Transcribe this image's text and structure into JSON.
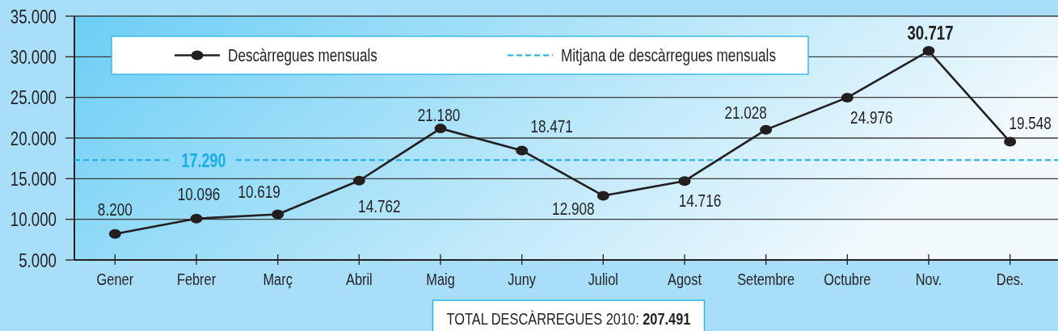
{
  "chart_data": {
    "type": "line",
    "categories": [
      "Gener",
      "Febrer",
      "Març",
      "Abril",
      "Maig",
      "Juny",
      "Juliol",
      "Agost",
      "Setembre",
      "Octubre",
      "Nov.",
      "Des."
    ],
    "series": [
      {
        "name": "Descàrregues mensuals",
        "color": "#231f20",
        "values": [
          8200,
          10096,
          10619,
          14762,
          21180,
          18471,
          12908,
          14716,
          21028,
          24976,
          30717,
          19548
        ],
        "value_labels": [
          "8.200",
          "10.096",
          "10.619",
          "14.762",
          "21.180",
          "18.471",
          "12.908",
          "14.716",
          "21.028",
          "24.976",
          "30.717",
          "19.548"
        ]
      }
    ],
    "ylim": [
      5000,
      35000
    ],
    "yticks": [
      {
        "value": 5000,
        "label": "5.000"
      },
      {
        "value": 10000,
        "label": "10.000"
      },
      {
        "value": 15000,
        "label": "15.000"
      },
      {
        "value": 20000,
        "label": "20.000"
      },
      {
        "value": 25000,
        "label": "25.000"
      },
      {
        "value": 30000,
        "label": "30.000"
      },
      {
        "value": 35000,
        "label": "35.000"
      }
    ],
    "grid": "y",
    "legend": "top",
    "marker": "circle",
    "line_style": "solid",
    "ref_lines": [
      {
        "axis": "y",
        "value": 17290,
        "label": "Mitjana de descàrregues mensuals",
        "color": "#1aace6",
        "line_style": "dashed"
      }
    ],
    "annotations": [
      "17.290",
      "TOTAL DESCÀRREGUES 2010: 207.491"
    ]
  }
}
